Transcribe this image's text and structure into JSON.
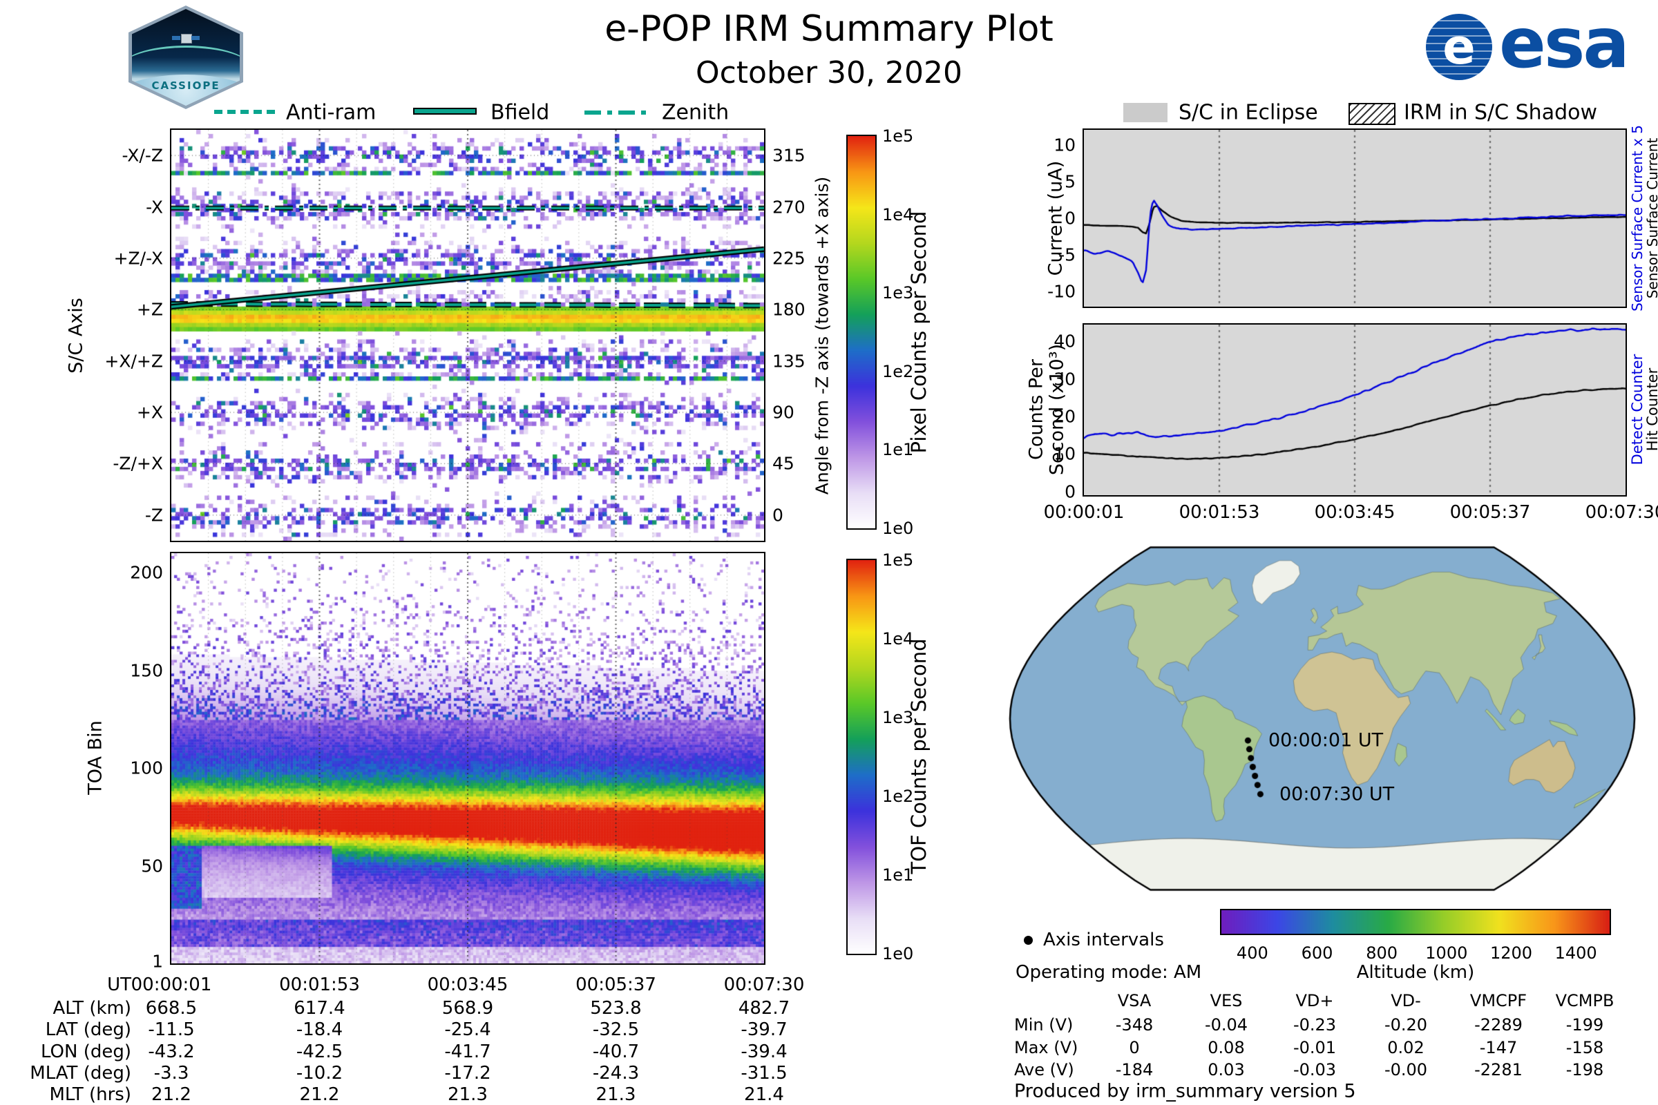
{
  "header": {
    "title": "e-POP IRM Summary Plot",
    "date": "October 30, 2020",
    "cassiope_text": "CASSIOPE",
    "esa_text": "esa",
    "esa_globe_letter": "e"
  },
  "colors": {
    "overlay_teal": "#0aa58e",
    "line_blue": "#0000dd",
    "line_black": "#000000",
    "eclipse_gray": "#d8d8d8",
    "eclipse_swatch": "#cbcbcb",
    "ocean": "#85aecf",
    "ice": "#eff1ea",
    "spectro_cmap": [
      "#ffffff",
      "#e8def6",
      "#be96e6",
      "#8250dc",
      "#3c32dc",
      "#1e6ec8",
      "#14a05a",
      "#5ac828",
      "#b4d71e",
      "#f5e619",
      "#f89614",
      "#e12310"
    ],
    "altitude_cmap": [
      "#6e1ebe",
      "#3c46e6",
      "#1e8ca0",
      "#28aa46",
      "#96cd28",
      "#f0e11e",
      "#f89619",
      "#d71e14"
    ]
  },
  "legend_left": {
    "items": [
      {
        "label": "Anti-ram",
        "style": "dashed"
      },
      {
        "label": "Bfield",
        "style": "solid"
      },
      {
        "label": "Zenith",
        "style": "dash-dot"
      }
    ]
  },
  "legend_right": {
    "eclipse_label": "S/C in Eclipse",
    "shadow_label": "IRM in S/C Shadow"
  },
  "panel_axis": {
    "ylabel": "S/C Axis",
    "yticks": [
      "-X/-Z",
      "-X",
      "+Z/-X",
      "+Z",
      "+X/+Z",
      "+X",
      "-Z/+X",
      "-Z"
    ],
    "ytick_angles": [
      315,
      270,
      225,
      180,
      135,
      90,
      45,
      0
    ],
    "right_label": "Angle from -Z axis (towards +X axis)",
    "right_ticks": [
      "315",
      "270",
      "225",
      "180",
      "135",
      "90",
      "45",
      "0"
    ],
    "cbar_label": "Pixel Counts per Second",
    "cbar_ticks": [
      "1e5",
      "1e4",
      "1e3",
      "1e2",
      "1e1",
      "1e0"
    ]
  },
  "panel_toa": {
    "ylabel": "TOA Bin",
    "yticks": [
      200,
      150,
      100,
      50,
      1
    ],
    "cbar_label": "TOF Counts per Second",
    "cbar_ticks": [
      "1e5",
      "1e4",
      "1e3",
      "1e2",
      "1e1",
      "1e0"
    ]
  },
  "time_axis": {
    "label": "UT",
    "ticks": [
      "00:00:01",
      "00:01:53",
      "00:03:45",
      "00:05:37",
      "00:07:30"
    ]
  },
  "ephemeris": {
    "rows": [
      {
        "label": "UT",
        "values": [
          "00:00:01",
          "00:01:53",
          "00:03:45",
          "00:05:37",
          "00:07:30"
        ]
      },
      {
        "label": "ALT (km)",
        "values": [
          "668.5",
          "617.4",
          "568.9",
          "523.8",
          "482.7"
        ]
      },
      {
        "label": "LAT (deg)",
        "values": [
          "-11.5",
          "-18.4",
          "-25.4",
          "-32.5",
          "-39.7"
        ]
      },
      {
        "label": "LON (deg)",
        "values": [
          "-43.2",
          "-42.5",
          "-41.7",
          "-40.7",
          "-39.4"
        ]
      },
      {
        "label": "MLAT (deg)",
        "values": [
          "-3.3",
          "-10.2",
          "-17.2",
          "-24.3",
          "-31.5"
        ]
      },
      {
        "label": "MLT (hrs)",
        "values": [
          "21.2",
          "21.2",
          "21.3",
          "21.3",
          "21.4"
        ]
      }
    ]
  },
  "current_panel": {
    "ylabel": "Current (uA)",
    "yticks": [
      10,
      5,
      0,
      -5,
      -10
    ],
    "right_label_blue": "Sensor Surface Current x 5",
    "right_label_black": "Sensor Surface Current"
  },
  "counts_panel": {
    "ylabel_line1": "Counts Per",
    "ylabel_line2": "Second (x10³)",
    "yticks": [
      40,
      30,
      20,
      10,
      0
    ],
    "right_label_blue": "Detect Counter",
    "right_label_black": "Hit Counter"
  },
  "map": {
    "start_label": "00:00:01 UT",
    "end_label": "00:07:30 UT"
  },
  "map_legend": {
    "axis_intervals_label": "Axis intervals",
    "operating_mode": "Operating mode: AM"
  },
  "altitude_bar": {
    "label": "Altitude (km)",
    "ticks": [
      400,
      600,
      800,
      1000,
      1200,
      1400
    ],
    "range": [
      300,
      1500
    ]
  },
  "voltage_table": {
    "columns": [
      "VSA",
      "VES",
      "VD+",
      "VD-",
      "VMCPF",
      "VCMPB"
    ],
    "rows": [
      {
        "label": "Min (V)",
        "values": [
          "-348",
          "-0.04",
          "-0.23",
          "-0.20",
          "-2289",
          "-199"
        ]
      },
      {
        "label": "Max (V)",
        "values": [
          "0",
          "0.08",
          "-0.01",
          "0.02",
          "-147",
          "-158"
        ]
      },
      {
        "label": "Ave (V)",
        "values": [
          "-184",
          "0.03",
          "-0.03",
          "-0.00",
          "-2281",
          "-198"
        ]
      }
    ]
  },
  "footer": {
    "produced_by": "Produced by irm_summary version 5"
  },
  "chart_data": [
    {
      "type": "heatmap",
      "name": "sc_axis_pixel_counts",
      "x_axis": "UT",
      "x_ticks": [
        "00:00:01",
        "00:01:53",
        "00:03:45",
        "00:05:37",
        "00:07:30"
      ],
      "ylabel": "S/C Axis",
      "y_axis_right": "Angle from -Z axis (towards +X axis)",
      "y_range_deg": [
        -22.5,
        337.5
      ],
      "z_label": "Pixel Counts per Second",
      "z_scale": "log10",
      "z_range": [
        1,
        100000
      ],
      "axis_bands_deg": {
        "-X/-Z": 315,
        "-X": 270,
        "+Z/-X": 225,
        "+Z": 180,
        "+X/+Z": 135,
        "+X": 90,
        "-Z/+X": 45,
        "-Z": 0
      },
      "features": [
        {
          "desc": "bright ram flux band near +Z",
          "angle_range": [
            161.5,
            182.5
          ],
          "peak_counts_log10": 4.6
        },
        {
          "desc": "dark count-enhancement rows",
          "angles": [
            120,
            209,
            301
          ]
        }
      ],
      "overlays": [
        {
          "name": "Anti-ram",
          "style": "dashed",
          "deg_start": 185,
          "deg_end": 183.5
        },
        {
          "name": "Bfield",
          "style": "solid",
          "deg_start": 182.5,
          "deg_end": 233
        },
        {
          "name": "Zenith",
          "style": "dash-dot",
          "deg_start": 269,
          "deg_end": 269
        }
      ]
    },
    {
      "type": "heatmap",
      "name": "toa_tof_counts",
      "ylabel": "TOA Bin",
      "y_range": [
        0,
        210
      ],
      "z_label": "TOF Counts per Second",
      "z_scale": "log10",
      "z_range": [
        1,
        100000
      ],
      "features": [
        {
          "desc": "main TOF band core",
          "toa_center_start": 76,
          "toa_center_end": 67,
          "peak_counts_log10_start": 3.1,
          "peak_counts_log10_end": 4.0
        },
        {
          "desc": "diffuse halo",
          "toa_range": [
            20,
            120
          ]
        },
        {
          "desc": "low-TOA band",
          "toa_range": [
            8,
            22
          ]
        }
      ]
    },
    {
      "type": "line",
      "name": "sensor_surface_current",
      "ylabel": "Current (uA)",
      "ylim": [
        -12.1,
        12.1
      ],
      "x_note": "x = fraction of pass 00:00:01 to 00:07:30 UT",
      "series": [
        {
          "name": "Sensor Surface Current",
          "color": "#000000",
          "points": [
            [
              0,
              -0.9
            ],
            [
              0.03,
              -1.0
            ],
            [
              0.06,
              -1.05
            ],
            [
              0.09,
              -1.15
            ],
            [
              0.1,
              -1.3
            ],
            [
              0.108,
              -1.9
            ],
            [
              0.115,
              -2.1
            ],
            [
              0.122,
              -0.5
            ],
            [
              0.128,
              1.5
            ],
            [
              0.135,
              1.7
            ],
            [
              0.145,
              1.0
            ],
            [
              0.16,
              0.2
            ],
            [
              0.18,
              -0.35
            ],
            [
              0.21,
              -0.55
            ],
            [
              0.25,
              -0.62
            ],
            [
              0.3,
              -0.65
            ],
            [
              0.4,
              -0.6
            ],
            [
              0.5,
              -0.5
            ],
            [
              0.6,
              -0.38
            ],
            [
              0.7,
              -0.25
            ],
            [
              0.8,
              -0.1
            ],
            [
              0.9,
              0.05
            ],
            [
              1,
              0.2
            ]
          ]
        },
        {
          "name": "Sensor Surface Current x 5",
          "color": "#0000dd",
          "points": [
            [
              0,
              -4.3
            ],
            [
              0.02,
              -4.9
            ],
            [
              0.045,
              -4.5
            ],
            [
              0.07,
              -5.2
            ],
            [
              0.09,
              -6.0
            ],
            [
              0.1,
              -7.5
            ],
            [
              0.108,
              -9.0
            ],
            [
              0.115,
              -7.0
            ],
            [
              0.122,
              0.5
            ],
            [
              0.128,
              2.6
            ],
            [
              0.135,
              1.8
            ],
            [
              0.145,
              0.2
            ],
            [
              0.155,
              -0.9
            ],
            [
              0.17,
              -1.4
            ],
            [
              0.2,
              -1.5
            ],
            [
              0.25,
              -1.45
            ],
            [
              0.3,
              -1.3
            ],
            [
              0.4,
              -1.05
            ],
            [
              0.5,
              -0.8
            ],
            [
              0.6,
              -0.5
            ],
            [
              0.7,
              -0.2
            ],
            [
              0.8,
              0.05
            ],
            [
              0.9,
              0.3
            ],
            [
              1,
              0.45
            ]
          ]
        }
      ]
    },
    {
      "type": "line",
      "name": "counters",
      "ylabel": "Counts Per Second (x10³)",
      "ylim": [
        -1,
        44.5
      ],
      "x_note": "x = fraction of pass 00:00:01 to 00:07:30 UT",
      "series": [
        {
          "name": "Hit Counter",
          "color": "#000000",
          "points": [
            [
              0,
              10.3
            ],
            [
              0.05,
              9.9
            ],
            [
              0.1,
              9.3
            ],
            [
              0.15,
              8.9
            ],
            [
              0.2,
              8.7
            ],
            [
              0.25,
              8.9
            ],
            [
              0.3,
              9.5
            ],
            [
              0.35,
              10.3
            ],
            [
              0.4,
              11.3
            ],
            [
              0.45,
              12.5
            ],
            [
              0.5,
              13.9
            ],
            [
              0.55,
              15.5
            ],
            [
              0.6,
              17.3
            ],
            [
              0.65,
              19.2
            ],
            [
              0.7,
              21.1
            ],
            [
              0.75,
              22.9
            ],
            [
              0.8,
              24.5
            ],
            [
              0.85,
              25.8
            ],
            [
              0.9,
              26.7
            ],
            [
              0.95,
              27.2
            ],
            [
              1,
              27.5
            ]
          ]
        },
        {
          "name": "Detect Counter",
          "color": "#0000dd",
          "points": [
            [
              0,
              14.6
            ],
            [
              0.03,
              15.6
            ],
            [
              0.05,
              15.3
            ],
            [
              0.08,
              15.4
            ],
            [
              0.1,
              15.9
            ],
            [
              0.115,
              14.9
            ],
            [
              0.14,
              14.6
            ],
            [
              0.17,
              14.8
            ],
            [
              0.2,
              15.3
            ],
            [
              0.24,
              16.0
            ],
            [
              0.28,
              17.0
            ],
            [
              0.32,
              18.2
            ],
            [
              0.36,
              19.6
            ],
            [
              0.4,
              21.2
            ],
            [
              0.44,
              22.9
            ],
            [
              0.48,
              24.7
            ],
            [
              0.52,
              26.7
            ],
            [
              0.56,
              29.0
            ],
            [
              0.6,
              31.4
            ],
            [
              0.64,
              33.9
            ],
            [
              0.68,
              36.2
            ],
            [
              0.72,
              38.4
            ],
            [
              0.76,
              40.3
            ],
            [
              0.8,
              41.4
            ],
            [
              0.84,
              42.2
            ],
            [
              0.88,
              42.9
            ],
            [
              0.92,
              43.2
            ],
            [
              0.96,
              43.3
            ],
            [
              1,
              43.3
            ]
          ]
        }
      ]
    },
    {
      "type": "map",
      "name": "ground_track",
      "projection": "robinson-like",
      "points": [
        {
          "ut": "00:00:01",
          "lat": -11.5,
          "lon": -43.2
        },
        {
          "ut": "00:01:53",
          "lat": -18.4,
          "lon": -42.5
        },
        {
          "ut": "00:03:45",
          "lat": -25.4,
          "lon": -41.7
        },
        {
          "ut": "00:05:37",
          "lat": -32.5,
          "lon": -40.7
        },
        {
          "ut": "00:07:30",
          "lat": -39.7,
          "lon": -39.4
        }
      ],
      "start_label": "00:00:01 UT",
      "end_label": "00:07:30 UT"
    }
  ]
}
